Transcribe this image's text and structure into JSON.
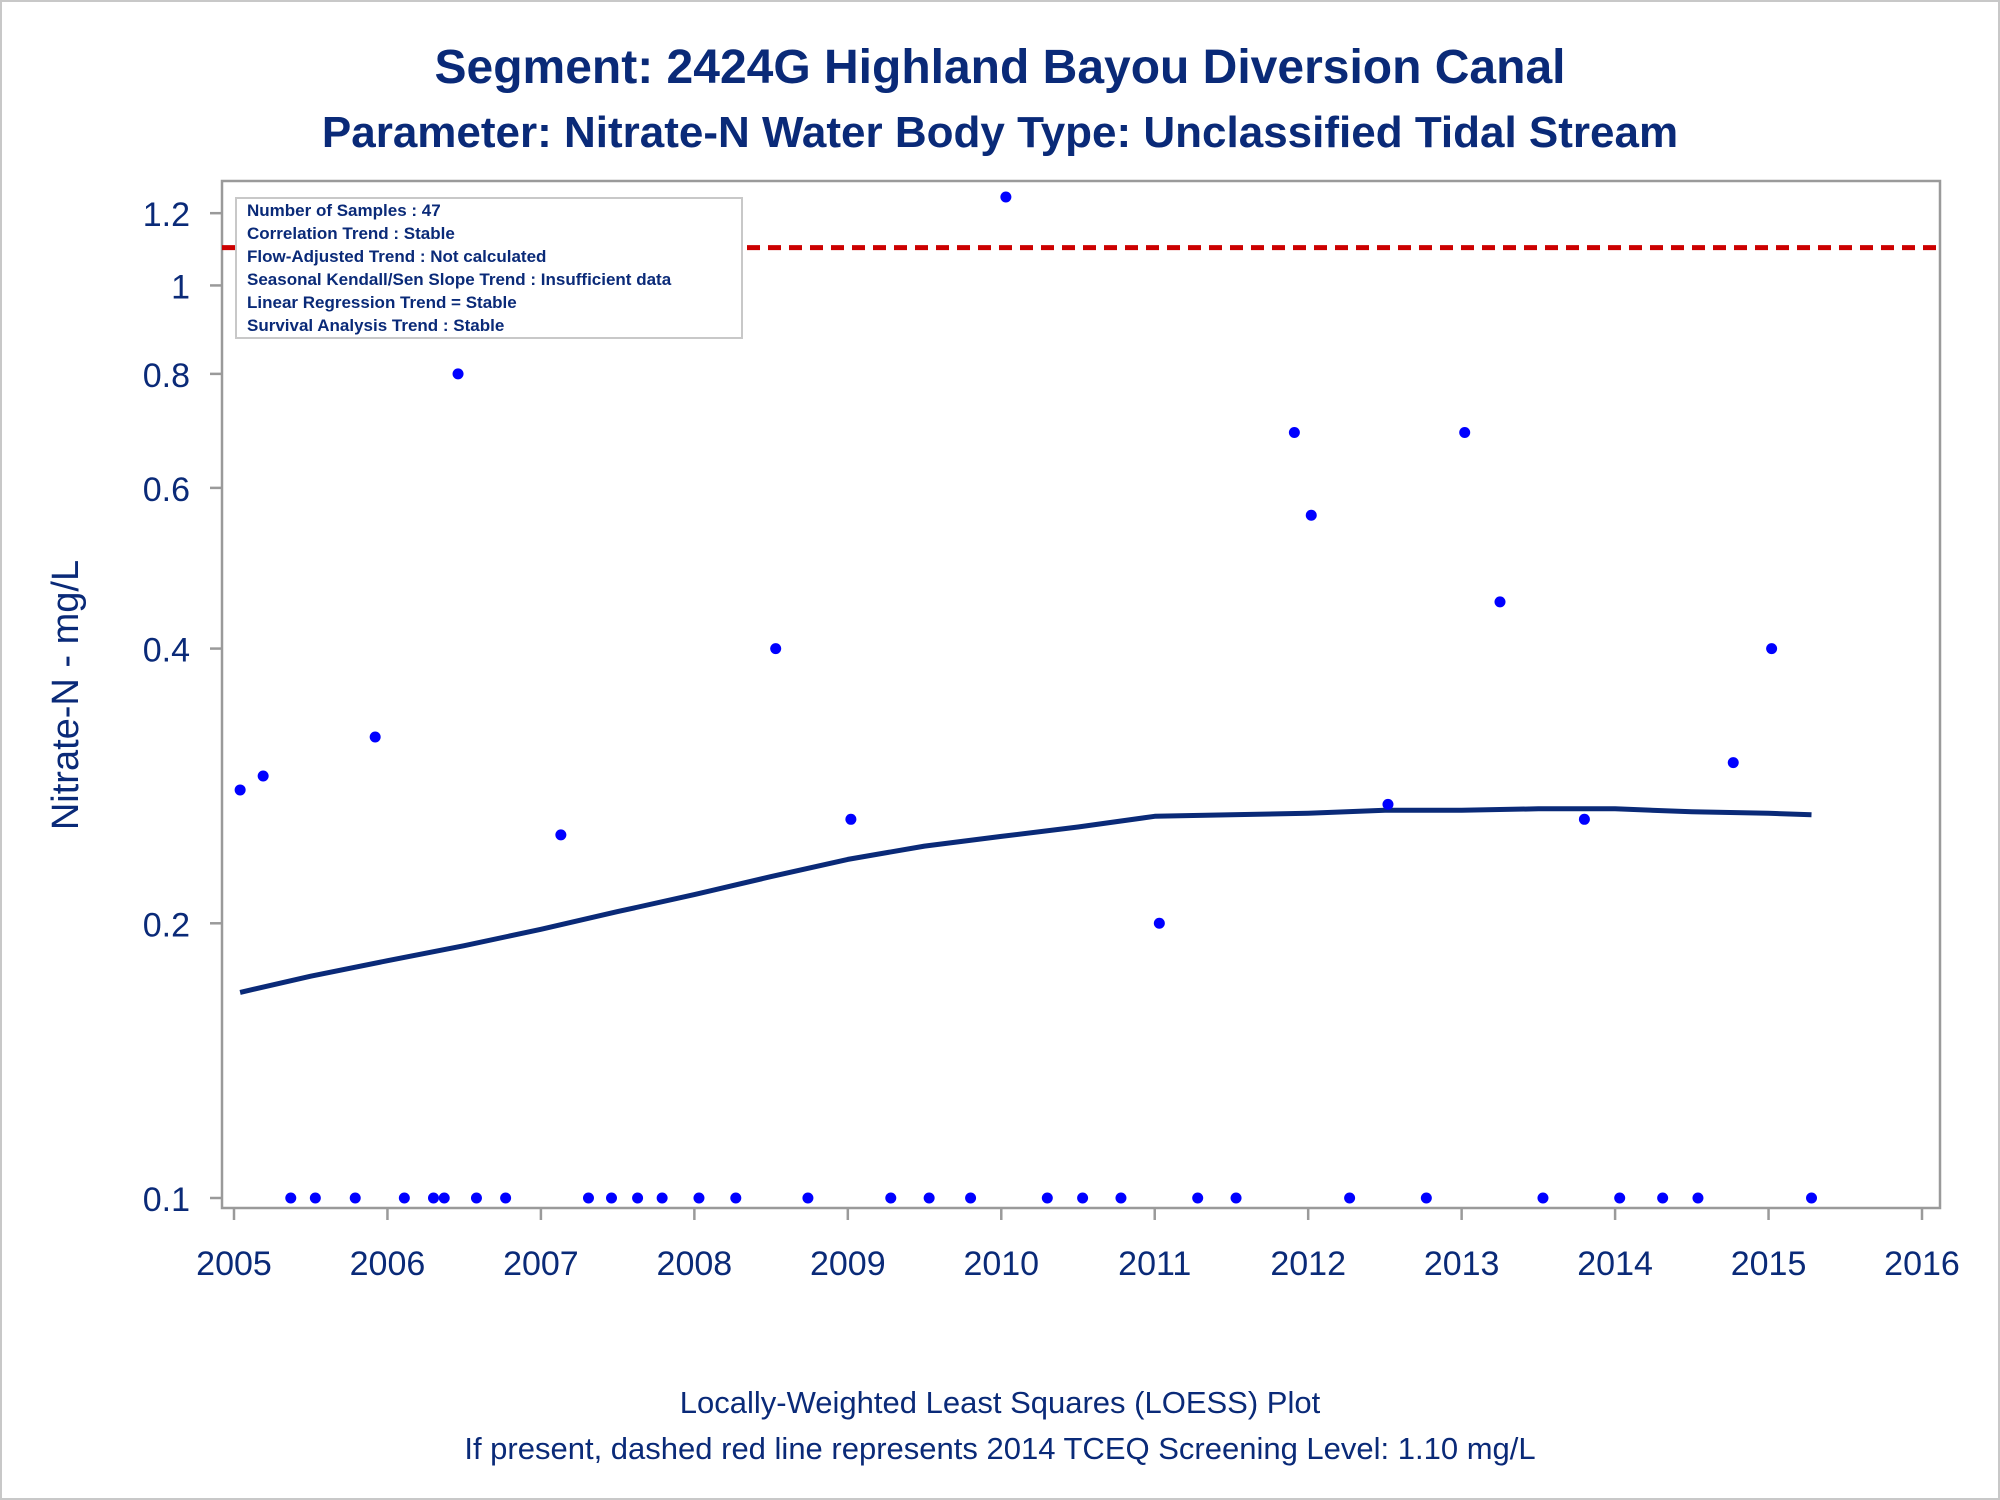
{
  "chart_data": {
    "type": "scatter",
    "title": "Segment: 2424G  Highland Bayou Diversion Canal",
    "subtitle": "Parameter: Nitrate-N   Water Body Type: Unclassified Tidal Stream",
    "xlabel": "",
    "ylabel": "Nitrate-N - mg/L",
    "xlim": [
      2005,
      2016
    ],
    "ylim": [
      0.1,
      1.25
    ],
    "yscale": "log",
    "x_ticks": [
      "2005",
      "2006",
      "2007",
      "2008",
      "2009",
      "2010",
      "2011",
      "2012",
      "2013",
      "2014",
      "2015",
      "2016"
    ],
    "y_ticks": [
      "0.1",
      "0.2",
      "0.4",
      "0.6",
      "0.8",
      "1",
      "1.2"
    ],
    "series": [
      {
        "type": "scatter",
        "x": [
          2005.04,
          2005.19,
          2005.37,
          2005.53,
          2005.79,
          2005.92,
          2006.11,
          2006.3,
          2006.37,
          2006.46,
          2006.58,
          2006.77,
          2007.13,
          2007.31,
          2007.46,
          2007.63,
          2007.79,
          2008.03,
          2008.27,
          2008.53,
          2008.74,
          2009.02,
          2009.28,
          2009.53,
          2009.8,
          2010.03,
          2010.3,
          2010.53,
          2010.78,
          2011.03,
          2011.28,
          2011.53,
          2011.91,
          2012.02,
          2012.27,
          2012.52,
          2012.77,
          2013.02,
          2013.25,
          2013.53,
          2013.8,
          2014.03,
          2014.31,
          2014.54,
          2014.77,
          2015.02,
          2015.28
        ],
        "y": [
          0.28,
          0.29,
          0.1,
          0.1,
          0.1,
          0.32,
          0.1,
          0.1,
          0.1,
          0.8,
          0.1,
          0.1,
          0.25,
          0.1,
          0.1,
          0.1,
          0.1,
          0.1,
          0.1,
          0.4,
          0.1,
          0.26,
          0.1,
          0.1,
          0.1,
          1.25,
          0.1,
          0.1,
          0.1,
          0.2,
          0.1,
          0.1,
          0.69,
          0.56,
          0.1,
          0.27,
          0.1,
          0.69,
          0.45,
          0.1,
          0.26,
          0.1,
          0.1,
          0.1,
          0.3,
          0.4,
          0.1
        ],
        "color": "#0000ff"
      },
      {
        "type": "line",
        "x": [
          2005.04,
          2005.5,
          2006.0,
          2006.5,
          2007.0,
          2007.5,
          2008.0,
          2008.5,
          2009.0,
          2009.5,
          2010.0,
          2010.5,
          2011.0,
          2011.5,
          2012.0,
          2012.5,
          2013.0,
          2013.5,
          2014.0,
          2014.5,
          2015.0,
          2015.28
        ],
        "y": [
          0.168,
          0.175,
          0.182,
          0.189,
          0.197,
          0.206,
          0.215,
          0.225,
          0.235,
          0.243,
          0.249,
          0.255,
          0.262,
          0.263,
          0.264,
          0.266,
          0.266,
          0.267,
          0.267,
          0.265,
          0.264,
          0.263
        ],
        "color": "#0a2a78"
      }
    ],
    "reference_line": {
      "y": 1.1,
      "style": "dashed",
      "color": "#cc0000"
    },
    "grid": false,
    "legend": null
  },
  "inset_box": {
    "lines": [
      "Number of Samples : 47",
      "Correlation Trend : Stable",
      "Flow-Adjusted Trend : Not calculated",
      "Seasonal Kendall/Sen Slope Trend : Insufficient data",
      "Linear Regression Trend = Stable",
      "Survival Analysis Trend : Stable"
    ]
  },
  "footnote": {
    "line1": "Locally-Weighted Least Squares (LOESS) Plot",
    "line2": "If present, dashed red line represents 2014 TCEQ Screening Level: 1.10 mg/L"
  },
  "colors": {
    "text": "#0a2a78",
    "points": "#0000ff",
    "loess": "#0a2a78",
    "screening": "#cc0000",
    "axis_frame": "#9a9a9a"
  }
}
